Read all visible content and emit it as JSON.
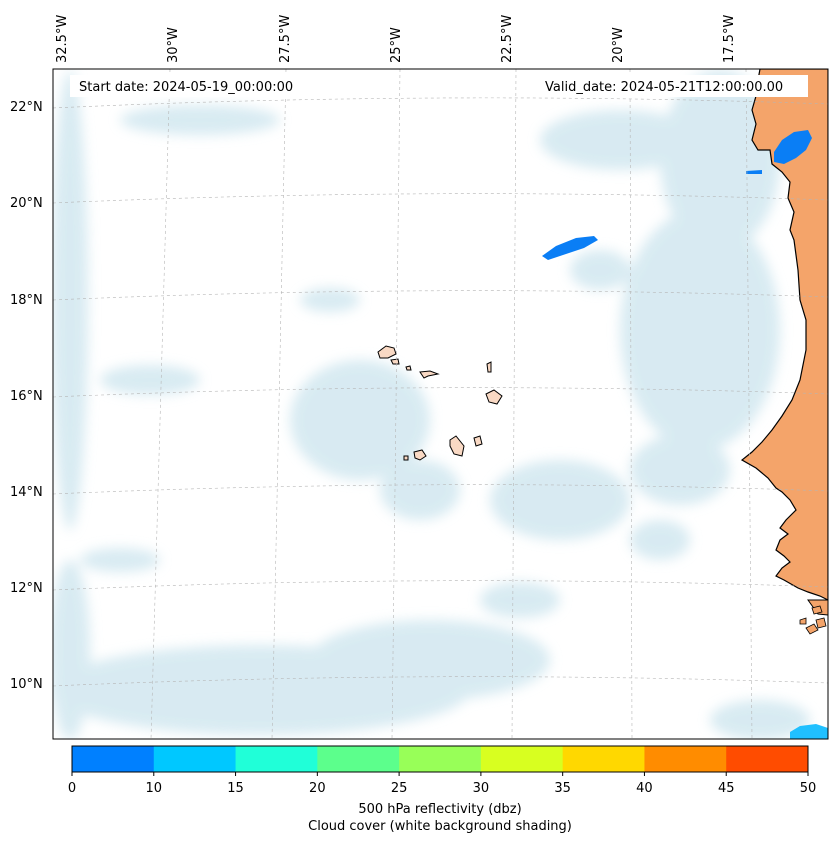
{
  "map": {
    "start_date": "Start date: 2024-05-19_00:00:00",
    "valid_date": "Valid_date: 2024-05-21T12:00:00.00",
    "lon_labels": [
      "32.5°W",
      "30°W",
      "27.5°W",
      "25°W",
      "22.5°W",
      "20°W",
      "17.5°W"
    ],
    "lat_labels": [
      "22°N",
      "20°N",
      "18°N",
      "16°N",
      "14°N",
      "12°N",
      "10°N"
    ],
    "land_color": "#f4a46a",
    "island_color": "#f9d9c4",
    "reflectivity_blue": "#0a7ef5",
    "cloud_color": "#cfe6ef"
  },
  "colorbar": {
    "ticks": [
      "0",
      "10",
      "15",
      "20",
      "25",
      "30",
      "35",
      "40",
      "45",
      "50"
    ],
    "colors": [
      "#0080ff",
      "#00c8ff",
      "#20ffd8",
      "#5cff8c",
      "#98ff58",
      "#d8ff20",
      "#ffd800",
      "#ff8c00",
      "#ff4c00"
    ],
    "title_line1": "500 hPa reflectivity (dbz)",
    "title_line2": "Cloud cover (white background shading)"
  }
}
